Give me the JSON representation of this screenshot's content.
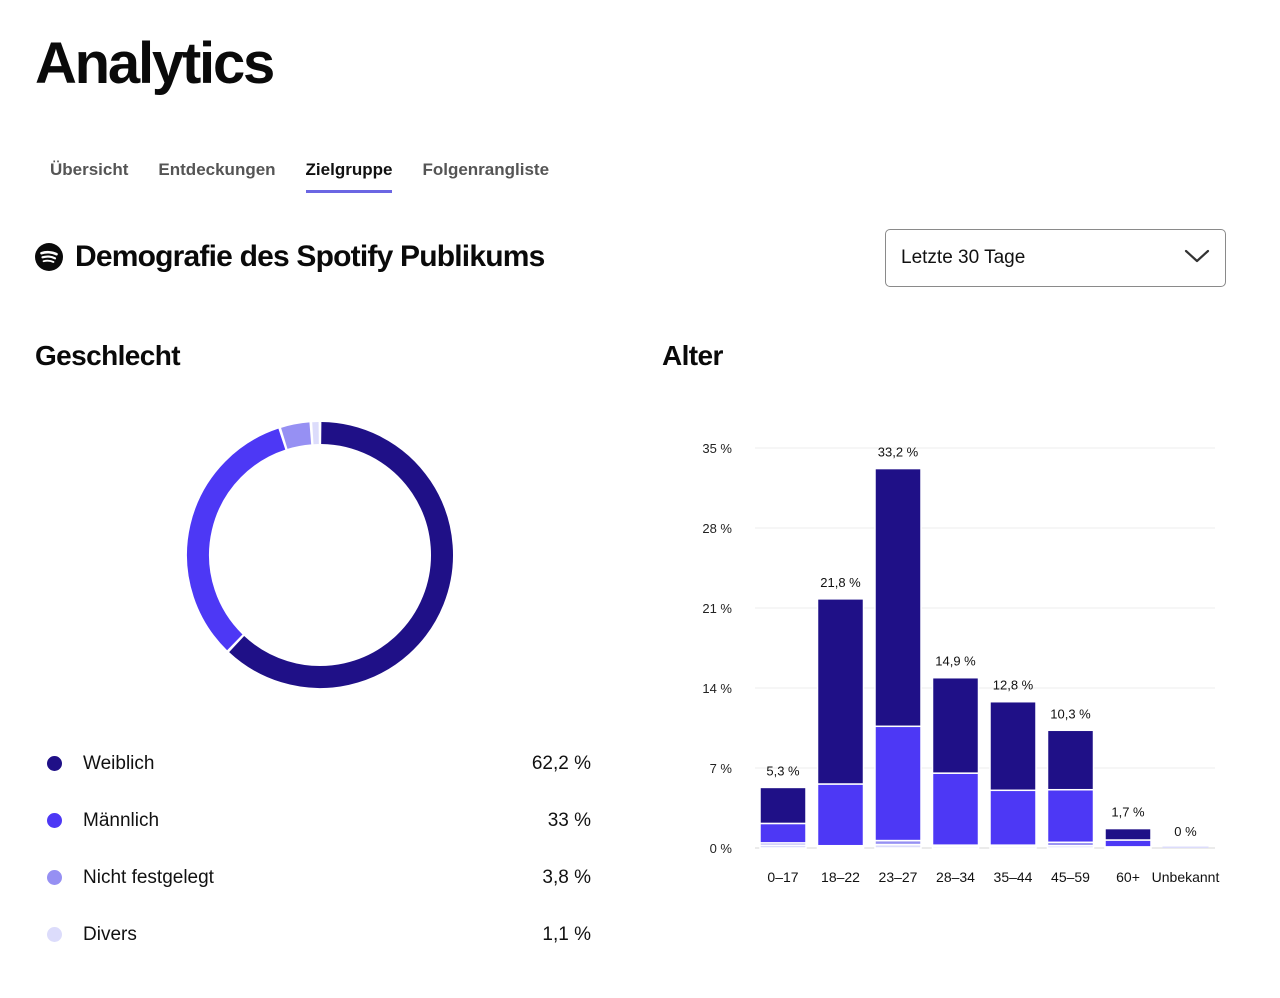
{
  "page": {
    "title": "Analytics"
  },
  "tabs": [
    {
      "label": "Übersicht",
      "active": false
    },
    {
      "label": "Entdeckungen",
      "active": false
    },
    {
      "label": "Zielgruppe",
      "active": true
    },
    {
      "label": "Folgenrangliste",
      "active": false
    }
  ],
  "section": {
    "title": "Demografie des Spotify Publikums",
    "icon": "spotify-icon"
  },
  "range_select": {
    "value": "Letzte 30 Tage",
    "icon": "chevron-down-icon"
  },
  "colors": {
    "female": "#1f1087",
    "male": "#4d38f5",
    "unspecified": "#9690f3",
    "diverse": "#dcdcfb",
    "accent": "#6b66e3"
  },
  "gender": {
    "title": "Geschlecht",
    "items": [
      {
        "name": "Weiblich",
        "value_label": "62,2 %",
        "value": 62.2,
        "color": "#1f1087"
      },
      {
        "name": "Männlich",
        "value_label": "33 %",
        "value": 33.0,
        "color": "#4d38f5"
      },
      {
        "name": "Nicht festgelegt",
        "value_label": "3,8 %",
        "value": 3.8,
        "color": "#9690f3"
      },
      {
        "name": "Divers",
        "value_label": "1,1 %",
        "value": 1.1,
        "color": "#dcdcfb"
      }
    ]
  },
  "age": {
    "title": "Alter"
  },
  "chart_data": [
    {
      "type": "pie",
      "title": "Geschlecht",
      "categories": [
        "Weiblich",
        "Männlich",
        "Nicht festgelegt",
        "Divers"
      ],
      "values": [
        62.2,
        33.0,
        3.8,
        1.1
      ]
    },
    {
      "type": "bar",
      "stacked": true,
      "title": "Alter",
      "categories": [
        "0–17",
        "18–22",
        "23–27",
        "28–34",
        "35–44",
        "45–59",
        "60+",
        "Unbekannt"
      ],
      "totals": [
        5.3,
        21.8,
        33.2,
        14.9,
        12.8,
        10.3,
        1.7,
        0
      ],
      "total_labels": [
        "5,3 %",
        "21,8 %",
        "33,2 %",
        "14,9 %",
        "12,8 %",
        "10,3 %",
        "1,7 %",
        "0 %"
      ],
      "series": [
        {
          "values": [
            0.25,
            0.1,
            0.3,
            0.15,
            0.15,
            0.2,
            0.0,
            0.0
          ]
        },
        {
          "values": [
            0.2,
            0.1,
            0.35,
            0.1,
            0.1,
            0.3,
            0.1,
            0.0
          ]
        },
        {
          "values": [
            1.7,
            5.4,
            10.0,
            6.3,
            4.8,
            4.6,
            0.6,
            0.0
          ]
        },
        {
          "values": [
            3.15,
            16.2,
            22.55,
            8.35,
            7.75,
            5.2,
            1.0,
            0.0
          ]
        }
      ],
      "y_ticks": [
        0,
        7,
        14,
        21,
        28,
        35
      ],
      "y_tick_labels": [
        "0 %",
        "7 %",
        "14 %",
        "21 %",
        "28 %",
        "35 %"
      ],
      "ylim": [
        0,
        35
      ],
      "grid": true
    }
  ]
}
